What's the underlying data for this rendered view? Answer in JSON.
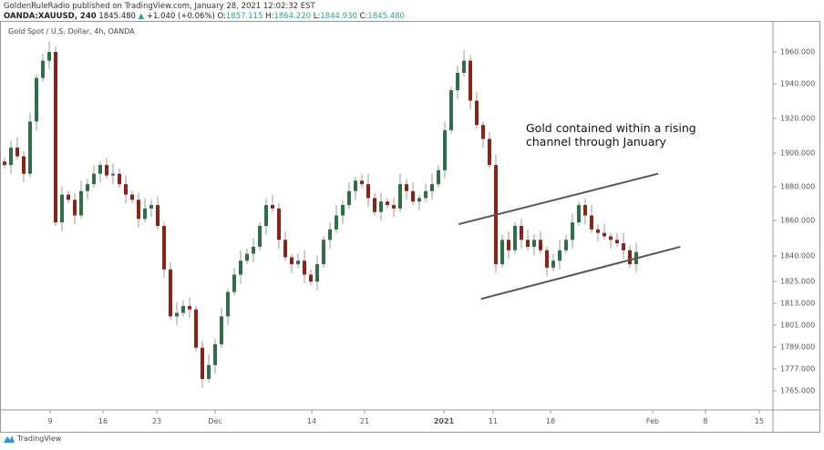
{
  "header": {
    "publisher_line": "GoldenRuleRadio published on TradingView.com, January 28, 2021 12:02:32 EST",
    "symbol": "OANDA:XAUUSD, 240",
    "last": "1845.480",
    "change": "+1.040 (+0.06%)",
    "open_label": "O:",
    "open": "1857.115",
    "high_label": "H:",
    "high": "1864.220",
    "low_label": "L:",
    "low": "1844.930",
    "close_label": "C:",
    "close": "1845.480"
  },
  "chart_title": "Gold Spot / U.S. Dollar, 4h, OANDA",
  "annotation": [
    "Gold contained within a rising",
    "channel through January"
  ],
  "footer": {
    "brand": "TradingView"
  },
  "colors": {
    "up": "#2f6f45",
    "down": "#8b2414",
    "wick": "#999999",
    "channel": "#555555"
  },
  "chart_data": {
    "type": "candlestick",
    "y_ticks": [
      "1960.000",
      "1940.000",
      "1920.000",
      "1900.000",
      "1880.000",
      "1860.000",
      "1840.000",
      "1825.000",
      "1813.000",
      "1801.000",
      "1789.000",
      "1777.000",
      "1765.000"
    ],
    "x_ticks": [
      "9",
      "16",
      "23",
      "Dec",
      "14",
      "21",
      "2021",
      "11",
      "18",
      "Feb",
      "8",
      "15"
    ],
    "closes": [
      1895,
      1905,
      1900,
      1890,
      1920,
      1945,
      1955,
      1960,
      1862,
      1878,
      1875,
      1866,
      1880,
      1884,
      1890,
      1895,
      1889,
      1890,
      1884,
      1878,
      1875,
      1864,
      1870,
      1872,
      1860,
      1835,
      1808,
      1810,
      1814,
      1812,
      1790,
      1772,
      1780,
      1792,
      1808,
      1822,
      1832,
      1840,
      1844,
      1848,
      1860,
      1872,
      1870,
      1852,
      1842,
      1838,
      1840,
      1832,
      1828,
      1838,
      1852,
      1858,
      1866,
      1872,
      1880,
      1886,
      1884,
      1876,
      1868,
      1874,
      1872,
      1870,
      1884,
      1880,
      1874,
      1876,
      1880,
      1884,
      1892,
      1915,
      1938,
      1948,
      1955,
      1932,
      1918,
      1910,
      1895,
      1838,
      1852,
      1846,
      1860,
      1852,
      1848,
      1852,
      1846,
      1836,
      1840,
      1846,
      1852,
      1862,
      1872,
      1866,
      1858,
      1856,
      1854,
      1852,
      1850,
      1846,
      1838,
      1845
    ],
    "channel_lines": [
      {
        "from": {
          "date": "2021-01-03",
          "price": 1861
        },
        "to": {
          "date": "2021-01-30",
          "price": 1890
        }
      },
      {
        "from": {
          "date": "2021-01-06",
          "price": 1818
        },
        "to": {
          "date": "2021-02-02",
          "price": 1848
        }
      }
    ]
  }
}
